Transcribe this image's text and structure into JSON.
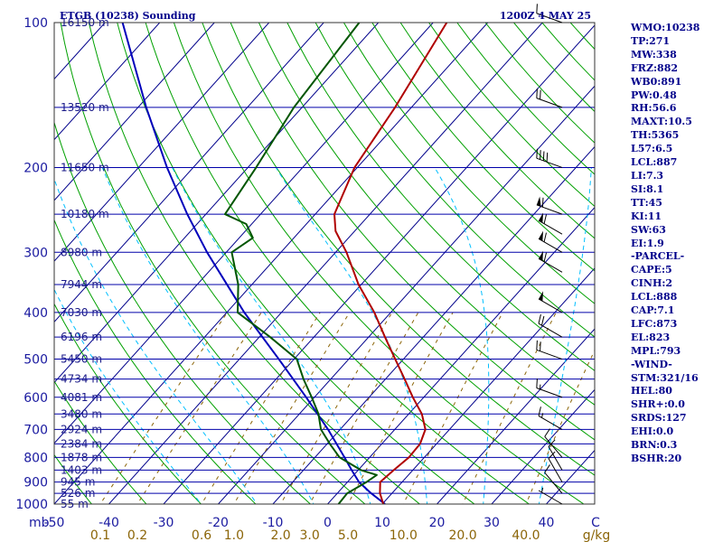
{
  "header": {
    "station": "ETGB (10238) Sounding",
    "time": "1200Z  4 MAY 25"
  },
  "indices": [
    "WMO:10238",
    "TP:271",
    "MW:338",
    "FRZ:882",
    "WB0:891",
    "PW:0.48",
    "RH:56.6",
    "MAXT:10.5",
    "TH:5365",
    "L57:6.5",
    "LCL:887",
    "LI:7.3",
    "SI:8.1",
    "TT:45",
    "KI:11",
    "SW:63",
    "EI:1.9",
    "-PARCEL-",
    "CAPE:5",
    "CINH:2",
    "LCL:888",
    "CAP:7.1",
    "LFC:873",
    "EL:823",
    "MPL:793",
    "-WIND-",
    "STM:321/16",
    "HEL:80",
    "SHR+:0.0",
    "SRDS:127",
    "EHI:0.0",
    "BRN:0.3",
    "BSHR:20"
  ],
  "colors": {
    "isobar": "#0000aa",
    "isotherm": "#00008b",
    "dry_adiabat": "#00a000",
    "moist_adiabat": "#00bfff",
    "mixing_ratio": "#8b6508",
    "temperature": "#b00000",
    "dewpoint": "#005500",
    "parcel": "#0000bb",
    "wind_barb": "#000000",
    "header_text": "#00008b"
  },
  "chart_data": {
    "type": "skew-t log-p",
    "pressure_unit_label": "mb",
    "mixing_ratio_unit_label": "g/kg",
    "ylim_hpa": [
      1000,
      100
    ],
    "xlim_celsius": [
      -50,
      50
    ],
    "pressure_ticks": [
      1000,
      900,
      800,
      700,
      600,
      500,
      400,
      300,
      200,
      100
    ],
    "pressure_labels": [
      "1000",
      "900",
      "800",
      "700",
      "600",
      "500",
      "400",
      "300",
      "200",
      "100"
    ],
    "temperature_ticks": [
      -50,
      -40,
      -30,
      -20,
      -10,
      0,
      10,
      20,
      30,
      40
    ],
    "temperature_labels": [
      "-50",
      "-40",
      "-30",
      "-20",
      "-10",
      "0",
      "10",
      "20",
      "30",
      "40"
    ],
    "corner_label": "C",
    "mixing_ratio_ticks": [
      0.1,
      0.2,
      0.6,
      1.0,
      2.0,
      3.0,
      5.0,
      10.0,
      20.0,
      40.0
    ],
    "mixing_ratio_labels": [
      "0.1",
      "0.2",
      "0.6",
      "1.0",
      "2.0",
      "3.0",
      "5.0",
      "10.0",
      "20.0",
      "40.0"
    ],
    "height_levels": [
      {
        "p": 1000,
        "label": "55 m"
      },
      {
        "p": 950,
        "label": "526 m"
      },
      {
        "p": 900,
        "label": "945 m"
      },
      {
        "p": 850,
        "label": "1403 m"
      },
      {
        "p": 800,
        "label": "1878 m"
      },
      {
        "p": 750,
        "label": "2384 m"
      },
      {
        "p": 700,
        "label": "2924 m"
      },
      {
        "p": 650,
        "label": "3480 m"
      },
      {
        "p": 600,
        "label": "4081 m"
      },
      {
        "p": 550,
        "label": "4734 m"
      },
      {
        "p": 500,
        "label": "5450 m"
      },
      {
        "p": 450,
        "label": "6196 m"
      },
      {
        "p": 400,
        "label": "7030 m"
      },
      {
        "p": 350,
        "label": "7944 m"
      },
      {
        "p": 300,
        "label": "8980 m"
      },
      {
        "p": 250,
        "label": "10180 m"
      },
      {
        "p": 200,
        "label": "11650 m"
      },
      {
        "p": 150,
        "label": "13520 m"
      },
      {
        "p": 100,
        "label": "16150 m"
      }
    ],
    "temperature_profile": [
      {
        "p": 1000,
        "t": 10.2
      },
      {
        "p": 950,
        "t": 7.8
      },
      {
        "p": 900,
        "t": 6.0
      },
      {
        "p": 850,
        "t": 6.5
      },
      {
        "p": 800,
        "t": 7.2
      },
      {
        "p": 750,
        "t": 7.0
      },
      {
        "p": 700,
        "t": 5.6
      },
      {
        "p": 650,
        "t": 2.4
      },
      {
        "p": 600,
        "t": -2.0
      },
      {
        "p": 550,
        "t": -6.5
      },
      {
        "p": 500,
        "t": -11.5
      },
      {
        "p": 450,
        "t": -17.0
      },
      {
        "p": 400,
        "t": -23.0
      },
      {
        "p": 350,
        "t": -30.5
      },
      {
        "p": 300,
        "t": -38.0
      },
      {
        "p": 271,
        "t": -43.5
      },
      {
        "p": 250,
        "t": -46.5
      },
      {
        "p": 200,
        "t": -50.5
      },
      {
        "p": 150,
        "t": -53.0
      },
      {
        "p": 100,
        "t": -57.5
      }
    ],
    "dewpoint_profile": [
      {
        "p": 1000,
        "td": 2.0
      },
      {
        "p": 950,
        "td": 1.8
      },
      {
        "p": 900,
        "td": 3.5
      },
      {
        "p": 870,
        "td": 4.2
      },
      {
        "p": 850,
        "td": 0.5
      },
      {
        "p": 800,
        "td": -5.5
      },
      {
        "p": 750,
        "td": -9.5
      },
      {
        "p": 700,
        "td": -13.5
      },
      {
        "p": 650,
        "td": -16.5
      },
      {
        "p": 600,
        "td": -20.5
      },
      {
        "p": 550,
        "td": -25.0
      },
      {
        "p": 500,
        "td": -29.5
      },
      {
        "p": 450,
        "td": -38.0
      },
      {
        "p": 400,
        "td": -48.0
      },
      {
        "p": 350,
        "td": -52.5
      },
      {
        "p": 300,
        "td": -59.0
      },
      {
        "p": 280,
        "td": -57.5
      },
      {
        "p": 262,
        "td": -61.0
      },
      {
        "p": 250,
        "td": -66.5
      },
      {
        "p": 200,
        "td": -68.5
      },
      {
        "p": 150,
        "td": -71.5
      },
      {
        "p": 100,
        "td": -73.5
      }
    ],
    "parcel_profile": [
      {
        "p": 1000,
        "t": 10.5
      },
      {
        "p": 950,
        "t": 6.2
      },
      {
        "p": 900,
        "t": 2.1
      },
      {
        "p": 850,
        "t": -1.2
      },
      {
        "p": 800,
        "t": -4.6
      },
      {
        "p": 700,
        "t": -12.2
      },
      {
        "p": 600,
        "t": -21.5
      },
      {
        "p": 500,
        "t": -32.8
      },
      {
        "p": 400,
        "t": -46.8
      },
      {
        "p": 300,
        "t": -63.5
      },
      {
        "p": 250,
        "t": -73.4
      },
      {
        "p": 200,
        "t": -84.8
      },
      {
        "p": 150,
        "t": -98.5
      },
      {
        "p": 100,
        "t": -116.8
      }
    ],
    "wind_barbs": [
      {
        "p": 1000,
        "dir": 300,
        "spd": 5
      },
      {
        "p": 950,
        "dir": 320,
        "spd": 10
      },
      {
        "p": 900,
        "dir": 330,
        "spd": 10
      },
      {
        "p": 850,
        "dir": 330,
        "spd": 10
      },
      {
        "p": 800,
        "dir": 320,
        "spd": 10
      },
      {
        "p": 700,
        "dir": 300,
        "spd": 15
      },
      {
        "p": 600,
        "dir": 290,
        "spd": 15
      },
      {
        "p": 500,
        "dir": 290,
        "spd": 20
      },
      {
        "p": 450,
        "dir": 300,
        "spd": 20
      },
      {
        "p": 400,
        "dir": 300,
        "spd": 50
      },
      {
        "p": 330,
        "dir": 300,
        "spd": 60
      },
      {
        "p": 300,
        "dir": 300,
        "spd": 60
      },
      {
        "p": 275,
        "dir": 300,
        "spd": 60
      },
      {
        "p": 250,
        "dir": 290,
        "spd": 60
      },
      {
        "p": 200,
        "dir": 290,
        "spd": 40
      },
      {
        "p": 150,
        "dir": 290,
        "spd": 20
      },
      {
        "p": 100,
        "dir": 290,
        "spd": 10
      }
    ]
  }
}
